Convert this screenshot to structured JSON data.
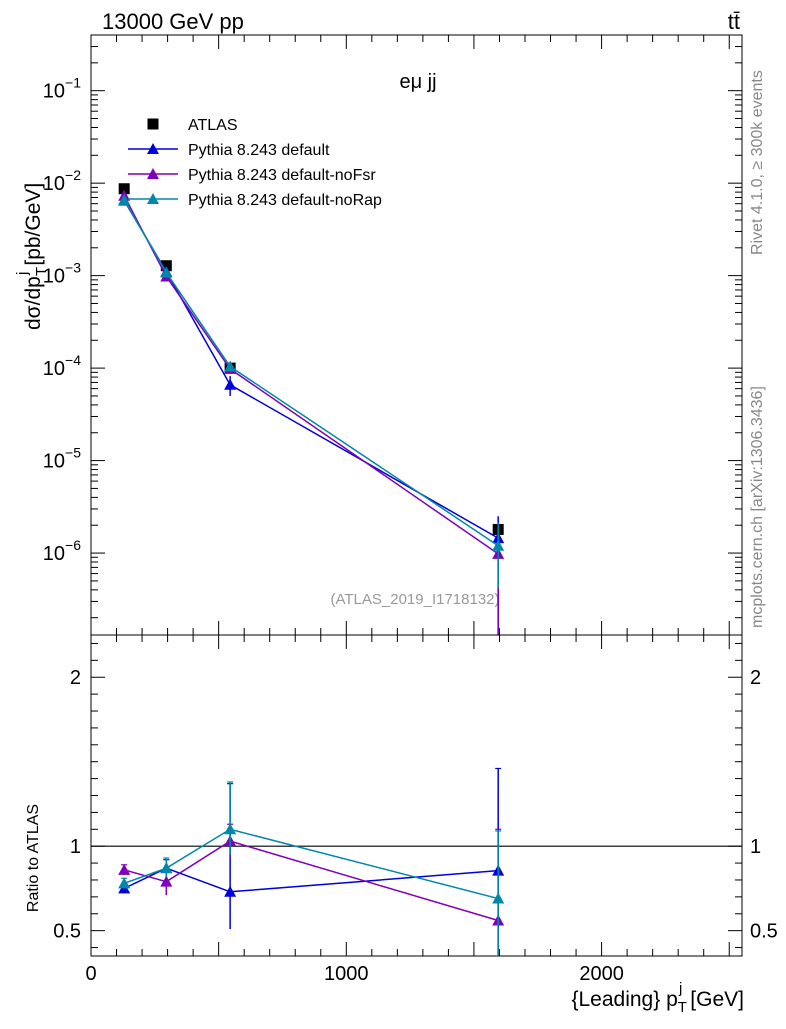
{
  "header": {
    "left": "13000 GeV pp",
    "right": "tt̄"
  },
  "side_labels": {
    "rivet": "Rivet 4.1.0, ≥ 300k events",
    "mcplots": "mcplots.cern.ch [arXiv:1306.3436]"
  },
  "analysis_id": "(ATLAS_2019_I1718132)",
  "channel_label": "eμ jj",
  "colors": {
    "atlas": "#000000",
    "default": "#0000dd",
    "noFsr": "#7f00bb",
    "noRap": "#0088aa",
    "frame": "#000000"
  },
  "chart_data": [
    {
      "type": "line",
      "panel": "main",
      "title": "",
      "xlabel": "{Leading} p_T^j [GeV]",
      "ylabel": "dσ/dp_T^j [pb/GeV]",
      "xlim": [
        0,
        2550
      ],
      "ylim": [
        1.3e-07,
        0.4
      ],
      "yscale": "log",
      "x_ticks": [
        0,
        1000,
        2000
      ],
      "x_tick_labels": [
        "0",
        "1000",
        "2000"
      ],
      "y_ticks": [
        1e-06,
        1e-05,
        0.0001,
        0.001,
        0.01,
        0.1
      ],
      "y_tick_labels": [
        [
          "10",
          "−6"
        ],
        [
          "10",
          "−5"
        ],
        [
          "10",
          "−4"
        ],
        [
          "10",
          "−3"
        ],
        [
          "10",
          "−2"
        ],
        [
          "10",
          "−1"
        ]
      ],
      "legend": [
        {
          "key": "atlas",
          "label": "ATLAS",
          "marker": "square"
        },
        {
          "key": "default",
          "label": "Pythia 8.243 default",
          "marker": "triangle"
        },
        {
          "key": "noFsr",
          "label": "Pythia 8.243 default-noFsr",
          "marker": "triangle"
        },
        {
          "key": "noRap",
          "label": "Pythia 8.243 default-noRap",
          "marker": "triangle"
        }
      ],
      "x": [
        130,
        295,
        545,
        1595
      ],
      "series": [
        {
          "key": "atlas",
          "name": "ATLAS",
          "values": [
            0.0087,
            0.00128,
            0.0001,
            1.8e-06
          ],
          "err_lo": [
            0.0087,
            0.00128,
            0.0001,
            1.8e-06
          ],
          "err_hi": [
            0.0087,
            0.00128,
            0.0001,
            1.8e-06
          ],
          "line": false
        },
        {
          "key": "default",
          "name": "Pythia 8.243 default",
          "values": [
            0.0065,
            0.0011,
            6.6e-05,
            1.45e-06
          ],
          "err_lo": [
            0.0062,
            0.00105,
            5e-05,
            1.3e-07
          ],
          "err_hi": [
            0.0068,
            0.00115,
            8.2e-05,
            2.5e-06
          ],
          "line": true
        },
        {
          "key": "noFsr",
          "name": "Pythia 8.243 default-noFsr",
          "values": [
            0.0073,
            0.00098,
            9.8e-05,
            9.8e-07
          ],
          "err_lo": [
            0.0069,
            0.00092,
            9e-05,
            1.3e-07
          ],
          "err_hi": [
            0.0077,
            0.00104,
            0.000106,
            1.6e-06
          ],
          "line": true
        },
        {
          "key": "noRap",
          "name": "Pythia 8.243 default-noRap",
          "values": [
            0.0066,
            0.00108,
            0.000104,
            1.2e-06
          ],
          "err_lo": [
            0.0063,
            0.00102,
            9.6e-05,
            4.2e-07
          ],
          "err_hi": [
            0.0069,
            0.00114,
            0.000112,
            2.1e-06
          ],
          "line": true
        }
      ]
    },
    {
      "type": "line",
      "panel": "ratio",
      "xlabel": "{Leading} p_T^j [GeV]",
      "ylabel": "Ratio to ATLAS",
      "xlim": [
        0,
        2550
      ],
      "ylim": [
        0.35,
        2.25
      ],
      "y_ticks": [
        0.5,
        1,
        2
      ],
      "y_tick_labels": [
        "0.5",
        "1",
        "2"
      ],
      "reference_line": 1,
      "x": [
        130,
        295,
        545,
        1595
      ],
      "series": [
        {
          "key": "default",
          "name": "Pythia 8.243 default",
          "values": [
            0.75,
            0.87,
            0.73,
            0.855
          ],
          "err_lo": [
            0.72,
            0.82,
            0.51,
            0.35
          ],
          "err_hi": [
            0.78,
            0.92,
            1.37,
            1.46
          ]
        },
        {
          "key": "noFsr",
          "name": "Pythia 8.243 default-noFsr",
          "values": [
            0.86,
            0.79,
            1.03,
            0.56
          ],
          "err_lo": [
            0.83,
            0.71,
            0.93,
            0.35
          ],
          "err_hi": [
            0.89,
            0.87,
            1.13,
            1.1
          ]
        },
        {
          "key": "noRap",
          "name": "Pythia 8.243 default-noRap",
          "values": [
            0.78,
            0.87,
            1.1,
            0.69
          ],
          "err_lo": [
            0.75,
            0.82,
            0.95,
            0.35
          ],
          "err_hi": [
            0.81,
            0.93,
            1.38,
            1.09
          ]
        }
      ]
    }
  ]
}
